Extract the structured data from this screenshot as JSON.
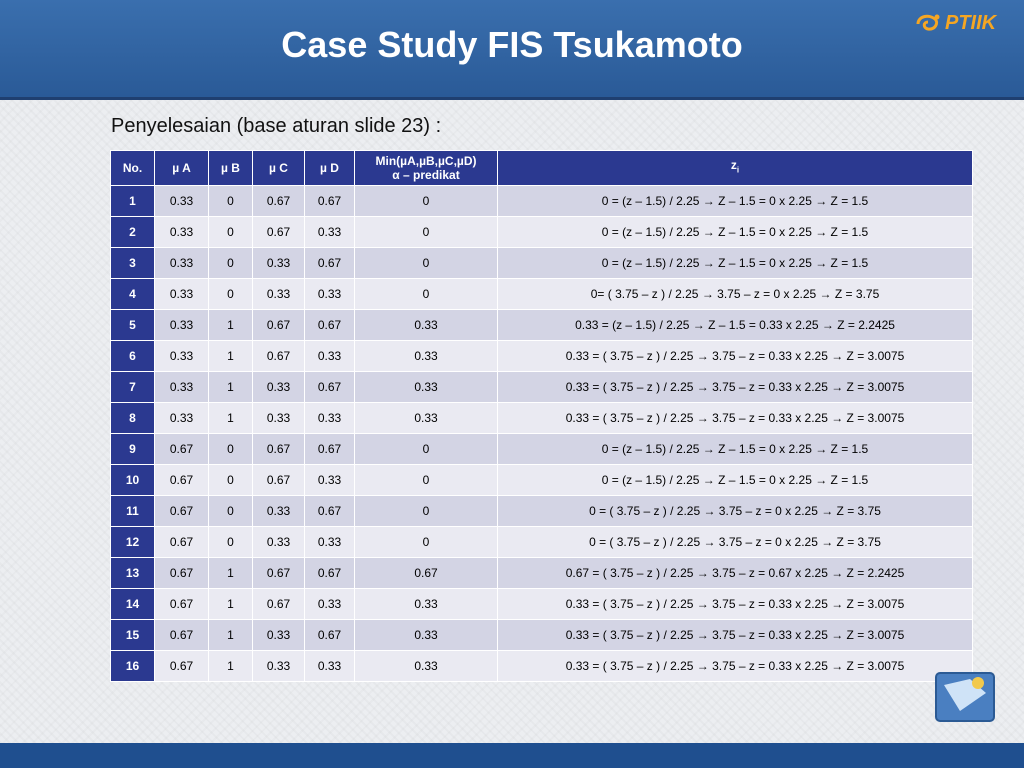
{
  "slide": {
    "title": "Case Study FIS Tsukamoto",
    "subtitle": "Penyelesaian (base aturan slide 23) :",
    "logo_text": "PTIIK"
  },
  "table": {
    "headers": {
      "no": "No.",
      "ua": "µ A",
      "ub": "µ B",
      "uc": "µ C",
      "ud": "µ D",
      "min_line1": "Min(µA,µB,µC,µD)",
      "min_line2": "α – predikat",
      "z": "z",
      "z_sub": "i"
    },
    "rows": [
      {
        "no": "1",
        "ua": "0.33",
        "ub": "0",
        "uc": "0.67",
        "ud": "0.67",
        "alpha": "0",
        "z": "0 = (z – 1.5) / 2.25 → Z – 1.5 = 0 x 2.25 → Z = 1.5"
      },
      {
        "no": "2",
        "ua": "0.33",
        "ub": "0",
        "uc": "0.67",
        "ud": "0.33",
        "alpha": "0",
        "z": "0 = (z – 1.5) / 2.25 → Z – 1.5 = 0 x 2.25 → Z = 1.5"
      },
      {
        "no": "3",
        "ua": "0.33",
        "ub": "0",
        "uc": "0.33",
        "ud": "0.67",
        "alpha": "0",
        "z": "0 = (z – 1.5) / 2.25 → Z – 1.5 = 0 x 2.25 → Z = 1.5"
      },
      {
        "no": "4",
        "ua": "0.33",
        "ub": "0",
        "uc": "0.33",
        "ud": "0.33",
        "alpha": "0",
        "z": "0= ( 3.75 – z ) / 2.25 → 3.75 – z = 0 x 2.25 → Z = 3.75"
      },
      {
        "no": "5",
        "ua": "0.33",
        "ub": "1",
        "uc": "0.67",
        "ud": "0.67",
        "alpha": "0.33",
        "z": "0.33 = (z – 1.5) / 2.25 → Z – 1.5 = 0.33 x 2.25 → Z = 2.2425"
      },
      {
        "no": "6",
        "ua": "0.33",
        "ub": "1",
        "uc": "0.67",
        "ud": "0.33",
        "alpha": "0.33",
        "z": "0.33 = ( 3.75 – z ) / 2.25 → 3.75 – z = 0.33 x 2.25 → Z = 3.0075"
      },
      {
        "no": "7",
        "ua": "0.33",
        "ub": "1",
        "uc": "0.33",
        "ud": "0.67",
        "alpha": "0.33",
        "z": "0.33 = ( 3.75 – z ) / 2.25 → 3.75 – z = 0.33 x 2.25 → Z = 3.0075"
      },
      {
        "no": "8",
        "ua": "0.33",
        "ub": "1",
        "uc": "0.33",
        "ud": "0.33",
        "alpha": "0.33",
        "z": "0.33 = ( 3.75 – z ) / 2.25 → 3.75 – z = 0.33 x 2.25 → Z = 3.0075"
      },
      {
        "no": "9",
        "ua": "0.67",
        "ub": "0",
        "uc": "0.67",
        "ud": "0.67",
        "alpha": "0",
        "z": "0 = (z – 1.5) / 2.25 → Z – 1.5 = 0 x 2.25 → Z = 1.5"
      },
      {
        "no": "10",
        "ua": "0.67",
        "ub": "0",
        "uc": "0.67",
        "ud": "0.33",
        "alpha": "0",
        "z": "0 = (z – 1.5) / 2.25 → Z – 1.5 = 0 x 2.25 → Z = 1.5"
      },
      {
        "no": "11",
        "ua": "0.67",
        "ub": "0",
        "uc": "0.33",
        "ud": "0.67",
        "alpha": "0",
        "z": "0 = ( 3.75 – z ) / 2.25 → 3.75 – z = 0 x 2.25 → Z = 3.75"
      },
      {
        "no": "12",
        "ua": "0.67",
        "ub": "0",
        "uc": "0.33",
        "ud": "0.33",
        "alpha": "0",
        "z": "0 = ( 3.75 – z ) / 2.25 → 3.75 – z = 0 x 2.25 → Z = 3.75"
      },
      {
        "no": "13",
        "ua": "0.67",
        "ub": "1",
        "uc": "0.67",
        "ud": "0.67",
        "alpha": "0.67",
        "z": "0.67 = ( 3.75 – z ) / 2.25 → 3.75 – z = 0.67 x 2.25 → Z = 2.2425"
      },
      {
        "no": "14",
        "ua": "0.67",
        "ub": "1",
        "uc": "0.67",
        "ud": "0.33",
        "alpha": "0.33",
        "z": "0.33 = ( 3.75 – z ) / 2.25 → 3.75 – z = 0.33 x 2.25 → Z = 3.0075"
      },
      {
        "no": "15",
        "ua": "0.67",
        "ub": "1",
        "uc": "0.33",
        "ud": "0.67",
        "alpha": "0.33",
        "z": "0.33 = ( 3.75 – z ) / 2.25 → 3.75 – z = 0.33 x 2.25 → Z = 3.0075"
      },
      {
        "no": "16",
        "ua": "0.67",
        "ub": "1",
        "uc": "0.33",
        "ud": "0.33",
        "alpha": "0.33",
        "z": "0.33 = ( 3.75 – z ) / 2.25 → 3.75 – z = 0.33 x 2.25 → Z = 3.0075"
      }
    ]
  },
  "colors": {
    "header_blue": "#2b3990",
    "title_bar": "#2f62a3",
    "row_dark": "#d3d4e4",
    "row_light": "#eaeaf2",
    "logo_orange": "#f5a623"
  }
}
